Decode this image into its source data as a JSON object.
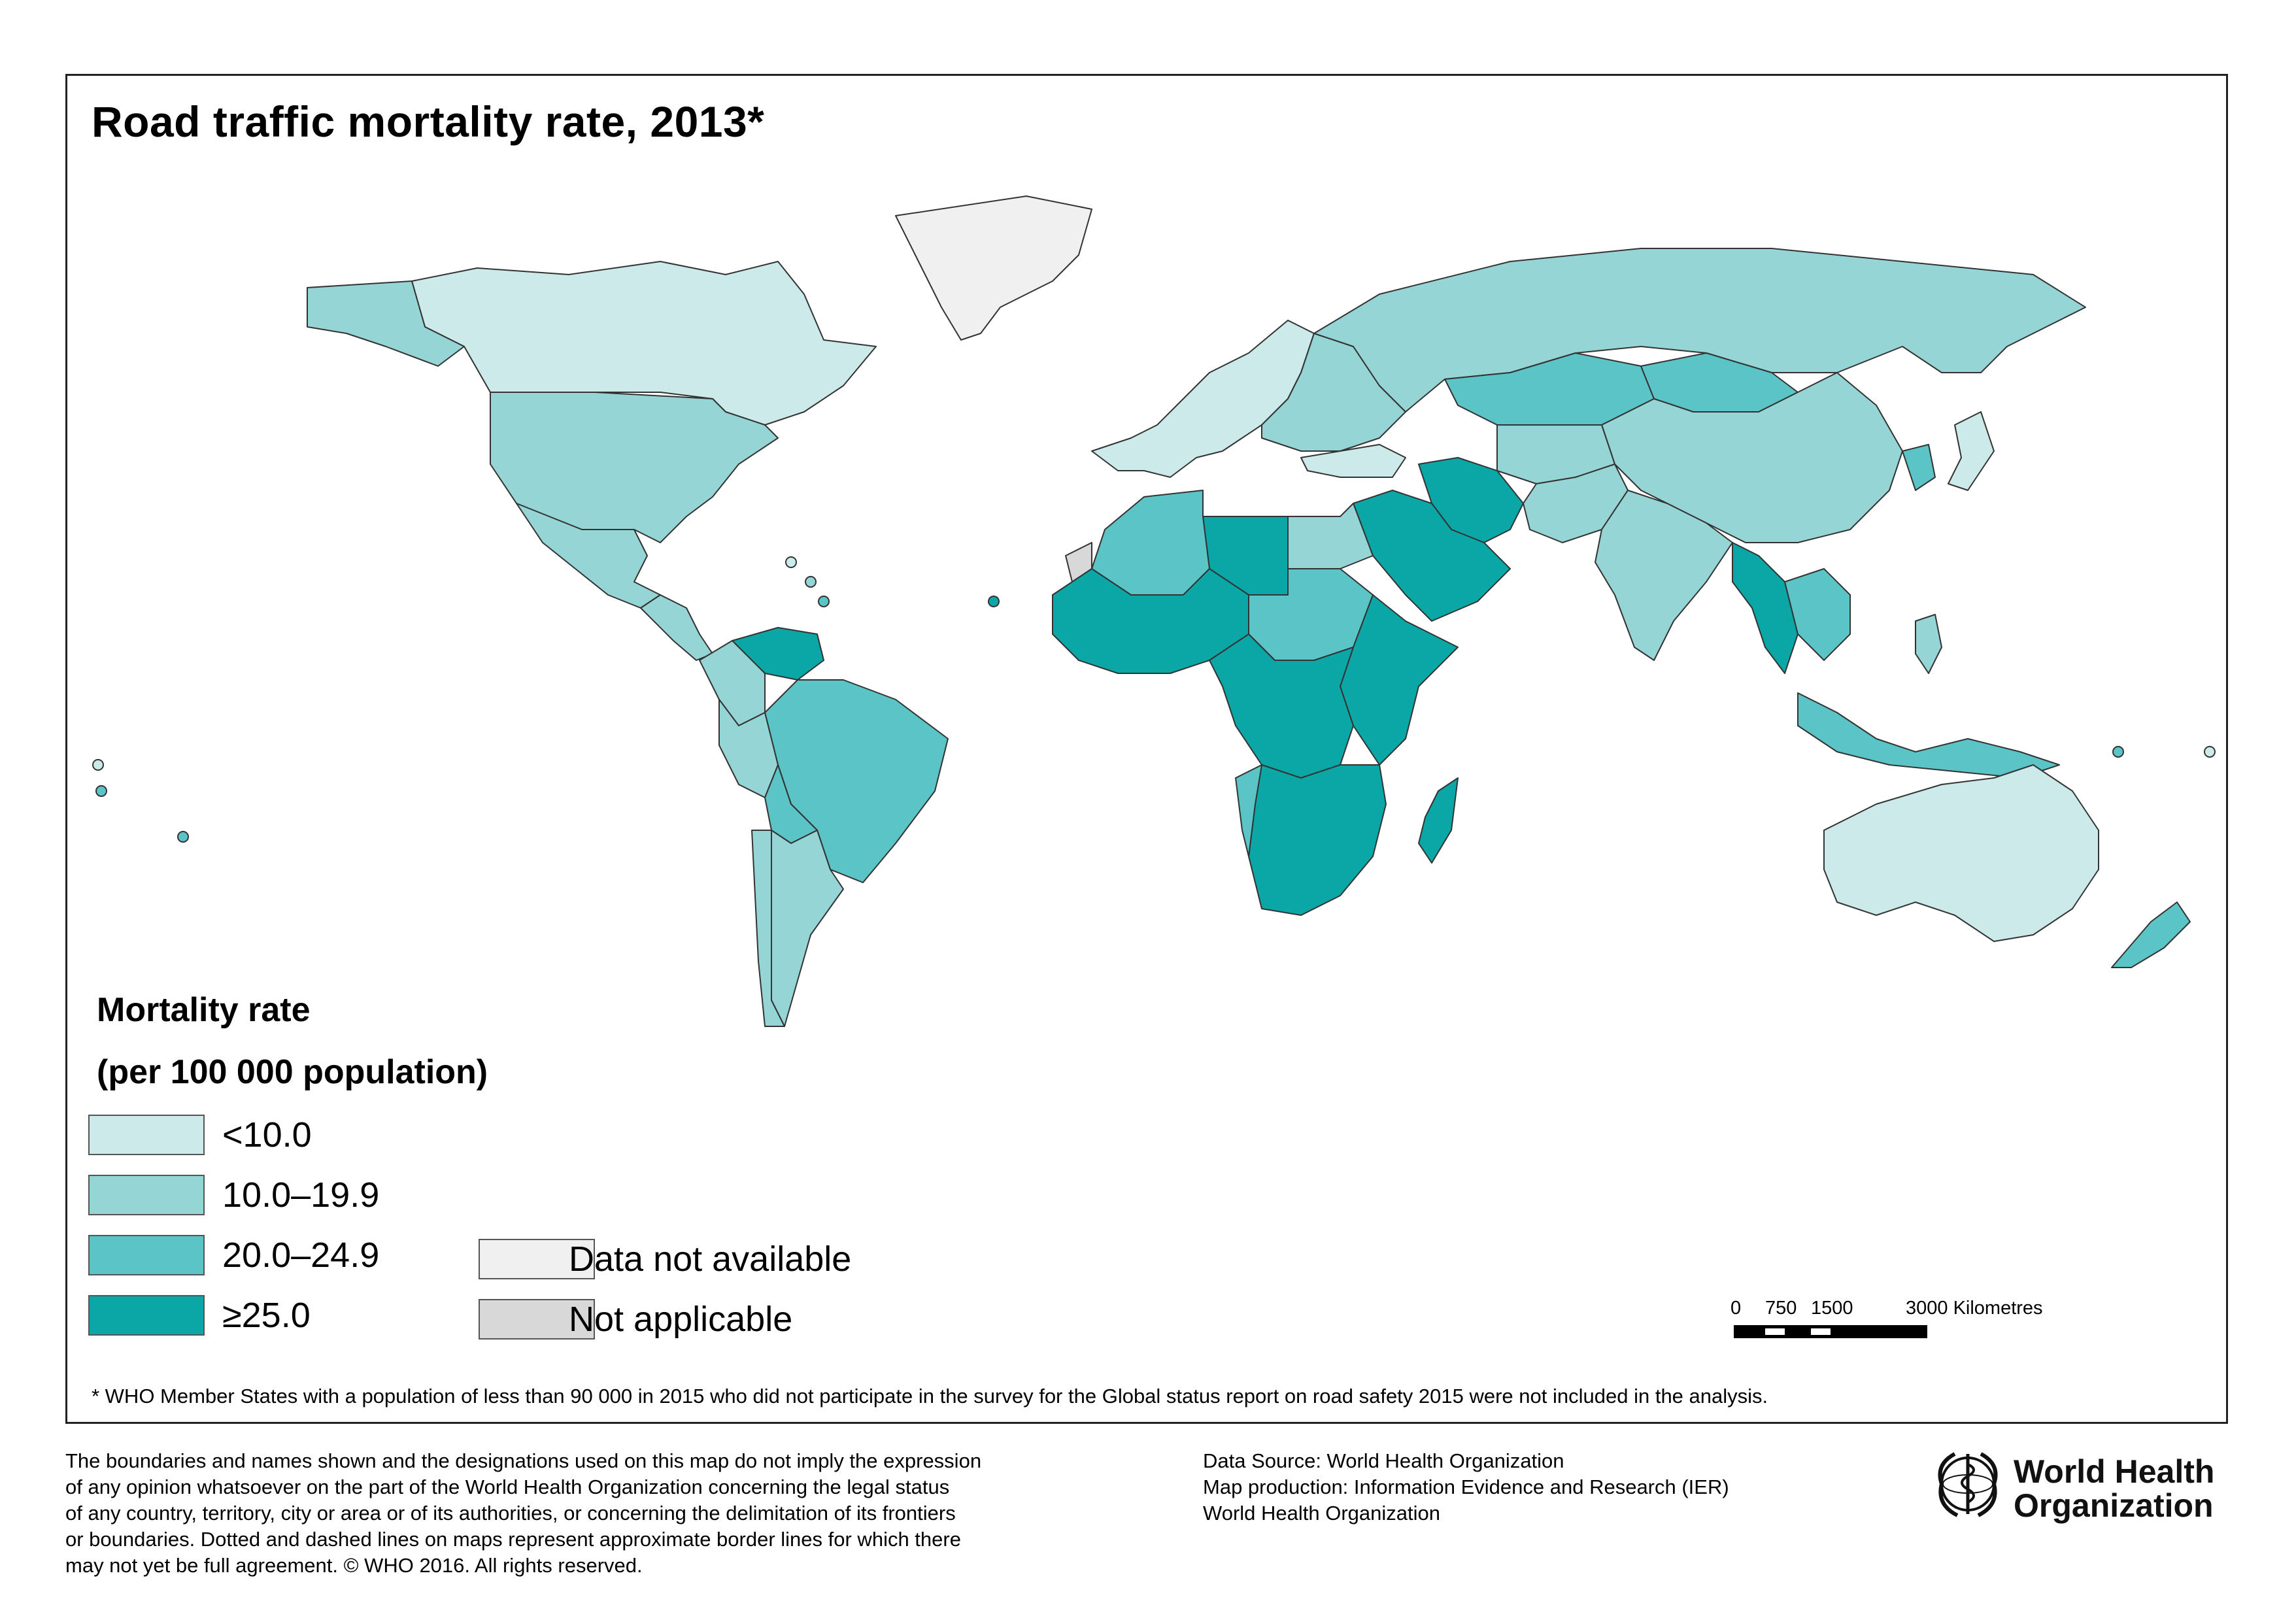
{
  "title": "Road traffic mortality rate, 2013*",
  "legend": {
    "title_line1": "Mortality rate",
    "title_line2": "(per 100 000 population)",
    "classes": [
      {
        "label": "<10.0",
        "color": "#cdeaea"
      },
      {
        "label": "10.0–19.9",
        "color": "#96d5d5"
      },
      {
        "label": "20.0–24.9",
        "color": "#5bc4c6"
      },
      {
        "label": "≥25.0",
        "color": "#0ba7a7"
      }
    ],
    "other": [
      {
        "label": "Data not available",
        "color": "#f0f0f0"
      },
      {
        "label": "Not applicable",
        "color": "#d8d8d8"
      }
    ]
  },
  "scale_bar": {
    "labels": [
      "0",
      "750",
      "1500",
      "3000 Kilometres"
    ]
  },
  "footnote": "* WHO Member States with a population of less than 90 000 in 2015 who did not participate in the survey for the Global status report on road safety 2015 were not included in the analysis.",
  "disclaimer": [
    "The boundaries and names shown and the designations used on this map do not imply the expression",
    "of any opinion whatsoever on the part of the World Health Organization concerning the legal status",
    "of any country, territory, city or area or of its authorities, or concerning the delimitation of its frontiers",
    "or boundaries. Dotted and dashed lines on maps represent approximate border lines for which there",
    "may not yet be full agreement. © WHO 2016. All rights reserved."
  ],
  "source": [
    "Data Source: World Health Organization",
    "Map production: Information Evidence and Research (IER)",
    "World Health Organization"
  ],
  "who_name": [
    "World Health",
    "Organization"
  ],
  "regions": [
    {
      "name": "Greenland",
      "class": "na"
    },
    {
      "name": "Canada",
      "class": "c1"
    },
    {
      "name": "United States",
      "class": "c2"
    },
    {
      "name": "Mexico",
      "class": "c2"
    },
    {
      "name": "Central America",
      "class": "c2"
    },
    {
      "name": "Venezuela",
      "class": "c4"
    },
    {
      "name": "Colombia",
      "class": "c2"
    },
    {
      "name": "Brazil",
      "class": "c3"
    },
    {
      "name": "Peru",
      "class": "c2"
    },
    {
      "name": "Bolivia",
      "class": "c3"
    },
    {
      "name": "Argentina",
      "class": "c2"
    },
    {
      "name": "Chile",
      "class": "c2"
    },
    {
      "name": "Western Europe",
      "class": "c1"
    },
    {
      "name": "Eastern Europe",
      "class": "c2"
    },
    {
      "name": "Russia",
      "class": "c2"
    },
    {
      "name": "Kazakhstan",
      "class": "c3"
    },
    {
      "name": "Mongolia",
      "class": "c3"
    },
    {
      "name": "China",
      "class": "c2"
    },
    {
      "name": "India",
      "class": "c2"
    },
    {
      "name": "Iran",
      "class": "c4"
    },
    {
      "name": "Saudi Arabia",
      "class": "c4"
    },
    {
      "name": "Egypt",
      "class": "c2"
    },
    {
      "name": "Libya",
      "class": "c4"
    },
    {
      "name": "Algeria",
      "class": "c3"
    },
    {
      "name": "West Africa",
      "class": "c4"
    },
    {
      "name": "Central Africa",
      "class": "c4"
    },
    {
      "name": "Sudan",
      "class": "c3"
    },
    {
      "name": "East Africa",
      "class": "c4"
    },
    {
      "name": "Southern Africa",
      "class": "c4"
    },
    {
      "name": "Namibia",
      "class": "c3"
    },
    {
      "name": "Madagascar",
      "class": "c4"
    },
    {
      "name": "Thailand",
      "class": "c4"
    },
    {
      "name": "Southeast Asia",
      "class": "c3"
    },
    {
      "name": "Japan",
      "class": "c1"
    },
    {
      "name": "Australia",
      "class": "c1"
    },
    {
      "name": "New Zealand",
      "class": "c3"
    },
    {
      "name": "Western Sahara",
      "class": "nap"
    }
  ]
}
